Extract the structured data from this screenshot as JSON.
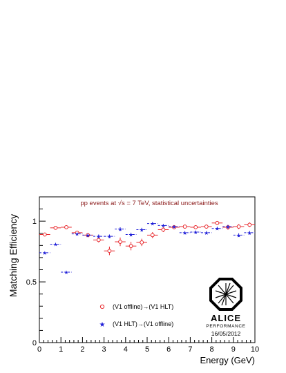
{
  "chart_data": {
    "type": "scatter",
    "title": "pp events at √s = 7 TeV, statistical uncertainties",
    "xlabel": "Energy (GeV)",
    "ylabel": "Matching Efficiency",
    "xlim": [
      0,
      10
    ],
    "ylim": [
      0,
      1.2
    ],
    "xticks": [
      0,
      1,
      2,
      3,
      4,
      5,
      6,
      7,
      8,
      9,
      10
    ],
    "xtick_labels": [
      "0",
      "1",
      "2",
      "3",
      "4",
      "5",
      "6",
      "7",
      "8",
      "9",
      "10"
    ],
    "yticks": [
      0,
      0.5,
      1
    ],
    "ytick_labels": [
      "0",
      "0.5",
      "1"
    ],
    "grid": false,
    "legend_position": "lower-left",
    "series": [
      {
        "name": "(V1 offline)→(V1 HLT)",
        "color": "#e8262b",
        "marker": "open-circle",
        "points": [
          {
            "x": 0.25,
            "y": 0.89,
            "xerr": 0.25,
            "yerr": 0.01
          },
          {
            "x": 0.75,
            "y": 0.945,
            "xerr": 0.25,
            "yerr": 0.008
          },
          {
            "x": 1.25,
            "y": 0.95,
            "xerr": 0.25,
            "yerr": 0.008
          },
          {
            "x": 1.75,
            "y": 0.905,
            "xerr": 0.25,
            "yerr": 0.01
          },
          {
            "x": 2.25,
            "y": 0.885,
            "xerr": 0.25,
            "yerr": 0.015
          },
          {
            "x": 2.75,
            "y": 0.845,
            "xerr": 0.25,
            "yerr": 0.02
          },
          {
            "x": 3.25,
            "y": 0.755,
            "xerr": 0.25,
            "yerr": 0.035
          },
          {
            "x": 3.75,
            "y": 0.83,
            "xerr": 0.25,
            "yerr": 0.035
          },
          {
            "x": 4.25,
            "y": 0.795,
            "xerr": 0.25,
            "yerr": 0.035
          },
          {
            "x": 4.75,
            "y": 0.825,
            "xerr": 0.25,
            "yerr": 0.03
          },
          {
            "x": 5.25,
            "y": 0.885,
            "xerr": 0.25,
            "yerr": 0.025
          },
          {
            "x": 5.75,
            "y": 0.93,
            "xerr": 0.25,
            "yerr": 0.02
          },
          {
            "x": 6.25,
            "y": 0.95,
            "xerr": 0.25,
            "yerr": 0.015
          },
          {
            "x": 6.75,
            "y": 0.955,
            "xerr": 0.25,
            "yerr": 0.015
          },
          {
            "x": 7.25,
            "y": 0.95,
            "xerr": 0.25,
            "yerr": 0.015
          },
          {
            "x": 7.75,
            "y": 0.955,
            "xerr": 0.25,
            "yerr": 0.015
          },
          {
            "x": 8.25,
            "y": 0.985,
            "xerr": 0.25,
            "yerr": 0.015
          },
          {
            "x": 8.75,
            "y": 0.95,
            "xerr": 0.25,
            "yerr": 0.02
          },
          {
            "x": 9.25,
            "y": 0.955,
            "xerr": 0.25,
            "yerr": 0.02
          },
          {
            "x": 9.75,
            "y": 0.97,
            "xerr": 0.25,
            "yerr": 0.02
          }
        ]
      },
      {
        "name": "(V1 HLT)→(V1 offline)",
        "color": "#1f1fd8",
        "marker": "star",
        "points": [
          {
            "x": 0.25,
            "y": 0.74,
            "xerr": 0.25,
            "yerr": 0.006
          },
          {
            "x": 0.75,
            "y": 0.81,
            "xerr": 0.25,
            "yerr": 0.006
          },
          {
            "x": 1.25,
            "y": 0.58,
            "xerr": 0.25,
            "yerr": 0.008
          },
          {
            "x": 1.75,
            "y": 0.895,
            "xerr": 0.25,
            "yerr": 0.01
          },
          {
            "x": 2.25,
            "y": 0.885,
            "xerr": 0.25,
            "yerr": 0.01
          },
          {
            "x": 2.75,
            "y": 0.875,
            "xerr": 0.25,
            "yerr": 0.015
          },
          {
            "x": 3.25,
            "y": 0.875,
            "xerr": 0.25,
            "yerr": 0.015
          },
          {
            "x": 3.75,
            "y": 0.935,
            "xerr": 0.25,
            "yerr": 0.015
          },
          {
            "x": 4.25,
            "y": 0.89,
            "xerr": 0.25,
            "yerr": 0.015
          },
          {
            "x": 4.75,
            "y": 0.93,
            "xerr": 0.25,
            "yerr": 0.015
          },
          {
            "x": 5.25,
            "y": 0.98,
            "xerr": 0.25,
            "yerr": 0.01
          },
          {
            "x": 5.75,
            "y": 0.965,
            "xerr": 0.25,
            "yerr": 0.01
          },
          {
            "x": 6.25,
            "y": 0.955,
            "xerr": 0.25,
            "yerr": 0.01
          },
          {
            "x": 6.75,
            "y": 0.905,
            "xerr": 0.25,
            "yerr": 0.012
          },
          {
            "x": 7.25,
            "y": 0.91,
            "xerr": 0.25,
            "yerr": 0.012
          },
          {
            "x": 7.75,
            "y": 0.905,
            "xerr": 0.25,
            "yerr": 0.012
          },
          {
            "x": 8.25,
            "y": 0.94,
            "xerr": 0.25,
            "yerr": 0.012
          },
          {
            "x": 8.75,
            "y": 0.955,
            "xerr": 0.25,
            "yerr": 0.015
          },
          {
            "x": 9.25,
            "y": 0.885,
            "xerr": 0.25,
            "yerr": 0.015
          },
          {
            "x": 9.75,
            "y": 0.905,
            "xerr": 0.25,
            "yerr": 0.015
          }
        ]
      }
    ]
  },
  "logo": {
    "name": "ALICE",
    "subtitle": "PERFORMANCE",
    "date": "16/05/2012"
  }
}
